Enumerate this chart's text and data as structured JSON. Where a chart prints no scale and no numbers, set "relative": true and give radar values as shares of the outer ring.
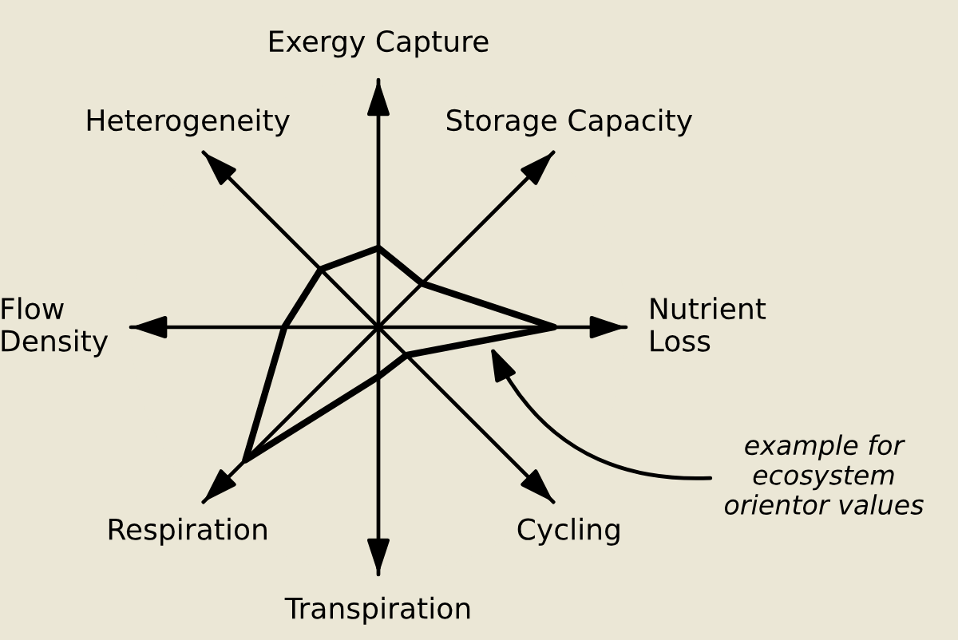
{
  "chart_data": {
    "type": "radar",
    "categories": [
      "Exergy Capture",
      "Storage Capacity",
      "Nutrient\nLoss",
      "Cycling",
      "Transpiration",
      "Respiration",
      "Flow\nDensity",
      "Heterogeneity"
    ],
    "relative": true,
    "series": [
      {
        "color": "#000000",
        "values": [
          0.32,
          0.25,
          0.71,
          0.16,
          0.2,
          0.76,
          0.38,
          0.33
        ]
      }
    ],
    "annotations": [
      "example for\necosystem\norientor values"
    ]
  }
}
